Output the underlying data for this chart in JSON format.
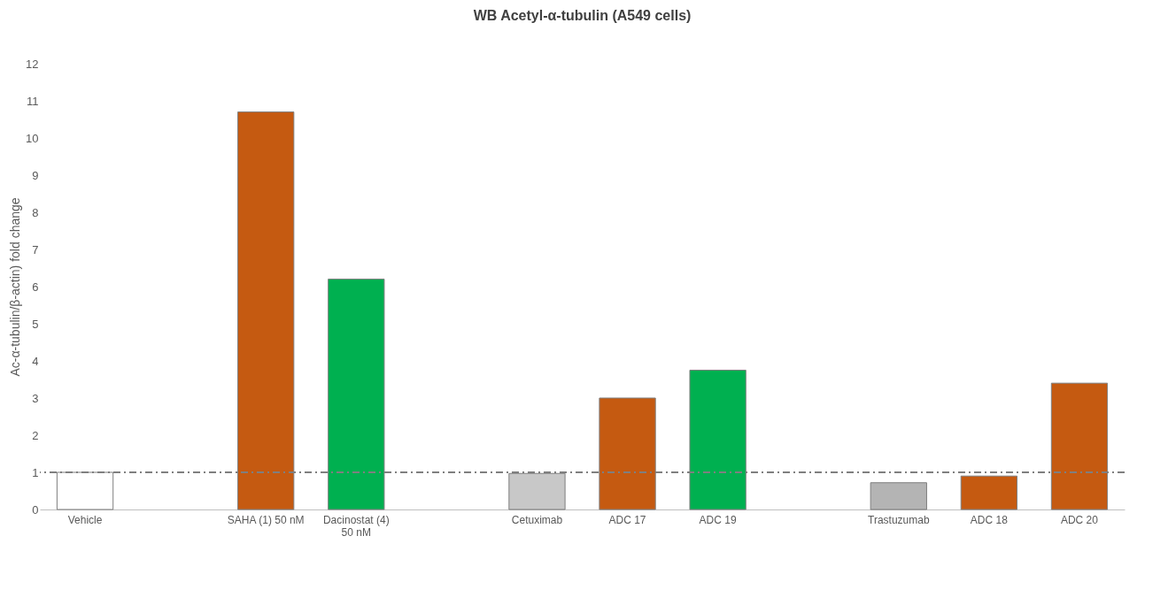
{
  "chart_data": {
    "type": "bar",
    "title": "WB Acetyl-α-tubulin (A549 cells)",
    "ylabel": "Ac-α-tubulin/β-actin) fold change",
    "categories": [
      "Vehicle",
      null,
      "SAHA (1) 50 nM",
      "Dacinostat (4) 50 nM",
      null,
      "Cetuximab",
      "ADC 17",
      "ADC 19",
      null,
      "Trastuzumab",
      "ADC 18",
      "ADC 20"
    ],
    "values": [
      1.0,
      null,
      10.7,
      6.2,
      null,
      0.97,
      3.0,
      3.75,
      null,
      0.72,
      0.9,
      3.4
    ],
    "colors": [
      "#ffffff",
      "#ffffff",
      "#c55a11",
      "#00b050",
      "#ffffff",
      "#c8c8c8",
      "#c55a11",
      "#00b050",
      "#ffffff",
      "#b4b4b4",
      "#c55a11",
      "#c55a11"
    ],
    "ylim": [
      0,
      12
    ],
    "yticks": [
      0,
      1,
      2,
      3,
      4,
      5,
      6,
      7,
      8,
      9,
      10,
      11,
      12
    ],
    "grid": false,
    "ref_lines": [
      {
        "axis": "y",
        "value": 1,
        "color": "#7f7f7f",
        "line_style": "dashdot"
      }
    ]
  }
}
